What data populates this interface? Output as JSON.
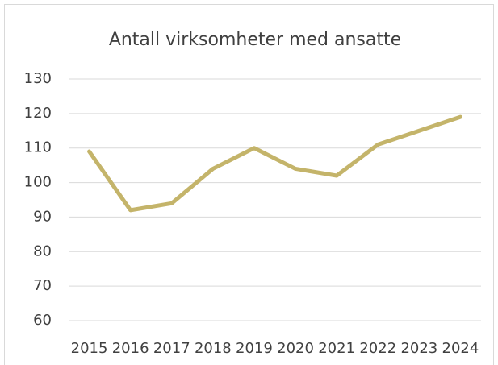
{
  "chart_data": {
    "type": "line",
    "title": "Antall virksomheter med ansatte",
    "categories": [
      "2015",
      "2016",
      "2017",
      "2018",
      "2019",
      "2020",
      "2021",
      "2022",
      "2023",
      "2024"
    ],
    "values": [
      109,
      92,
      94,
      104,
      110,
      104,
      102,
      111,
      115,
      119
    ],
    "color": "#c4b46a",
    "ylim": [
      60,
      130
    ],
    "yticks": [
      60,
      70,
      80,
      90,
      100,
      110,
      120,
      130
    ],
    "grid": true
  }
}
